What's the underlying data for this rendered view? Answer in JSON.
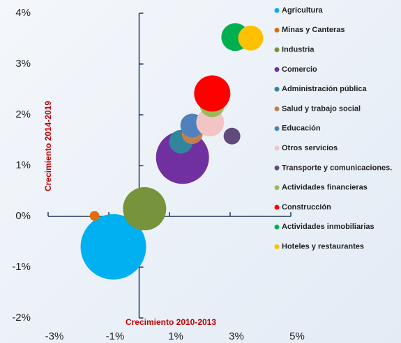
{
  "chart_data": {
    "type": "scatter",
    "x_label": "Crecimiento 2010-2013",
    "y_label": "Crecimiento 2014-2019",
    "xlim": [
      -3,
      5
    ],
    "xticks": [
      {
        "value": -3,
        "label": "-3%"
      },
      {
        "value": -1,
        "label": "-1%"
      },
      {
        "value": 1,
        "label": "1%"
      },
      {
        "value": 3,
        "label": "3%"
      },
      {
        "value": 5,
        "label": "5%"
      }
    ],
    "ylim": [
      -2,
      4
    ],
    "yticks": [
      {
        "value": -2,
        "label": "-2%"
      },
      {
        "value": -1,
        "label": "-1%"
      },
      {
        "value": 0,
        "label": "0%"
      },
      {
        "value": 1,
        "label": "1%"
      },
      {
        "value": 2,
        "label": "2%"
      },
      {
        "value": 3,
        "label": "3%"
      },
      {
        "value": 4,
        "label": "4%"
      }
    ],
    "series": [
      {
        "name": "Agricultura",
        "color": "#00b0f0",
        "x": [
          -0.85
        ],
        "values": [
          -0.6
        ],
        "sizes": [
          47
        ]
      },
      {
        "name": "Minas y Canteras",
        "color": "#e36c0a",
        "x": [
          -1.47
        ],
        "values": [
          0.01
        ],
        "sizes": [
          7
        ]
      },
      {
        "name": "Industria",
        "color": "#77933c",
        "x": [
          0.18
        ],
        "values": [
          0.15
        ],
        "sizes": [
          31
        ]
      },
      {
        "name": "Comercio",
        "color": "#7030a0",
        "x": [
          1.43
        ],
        "values": [
          1.16
        ],
        "sizes": [
          38
        ]
      },
      {
        "name": "Administración pública",
        "color": "#31859c",
        "x": [
          1.38
        ],
        "values": [
          1.47
        ],
        "sizes": [
          17
        ]
      },
      {
        "name": "Salud y  trabajo social",
        "color": "#c0804f",
        "x": [
          1.75
        ],
        "values": [
          1.63
        ],
        "sizes": [
          15
        ]
      },
      {
        "name": "Educación",
        "color": "#4f81bd",
        "x": [
          1.75
        ],
        "values": [
          1.79
        ],
        "sizes": [
          17
        ]
      },
      {
        "name": "Otros servicios",
        "color": "#f2c4c4",
        "x": [
          2.34
        ],
        "values": [
          1.85
        ],
        "sizes": [
          20
        ]
      },
      {
        "name": "Transporte y comunicaciones.",
        "color": "#604a7b",
        "x": [
          3.06
        ],
        "values": [
          1.58
        ],
        "sizes": [
          12
        ]
      },
      {
        "name": "Actividades financieras",
        "color": "#9bbb59",
        "x": [
          2.41
        ],
        "values": [
          2.2
        ],
        "sizes": [
          18
        ]
      },
      {
        "name": "Construcción",
        "color": "#ff0000",
        "x": [
          2.41
        ],
        "values": [
          2.42
        ],
        "sizes": [
          26
        ]
      },
      {
        "name": "Actividades inmobiliarias",
        "color": "#00b050",
        "x": [
          3.17
        ],
        "values": [
          3.53
        ],
        "sizes": [
          20
        ]
      },
      {
        "name": "Hoteles y restaurantes",
        "color": "#ffc000",
        "x": [
          3.68
        ],
        "values": [
          3.51
        ],
        "sizes": [
          18
        ]
      }
    ]
  }
}
